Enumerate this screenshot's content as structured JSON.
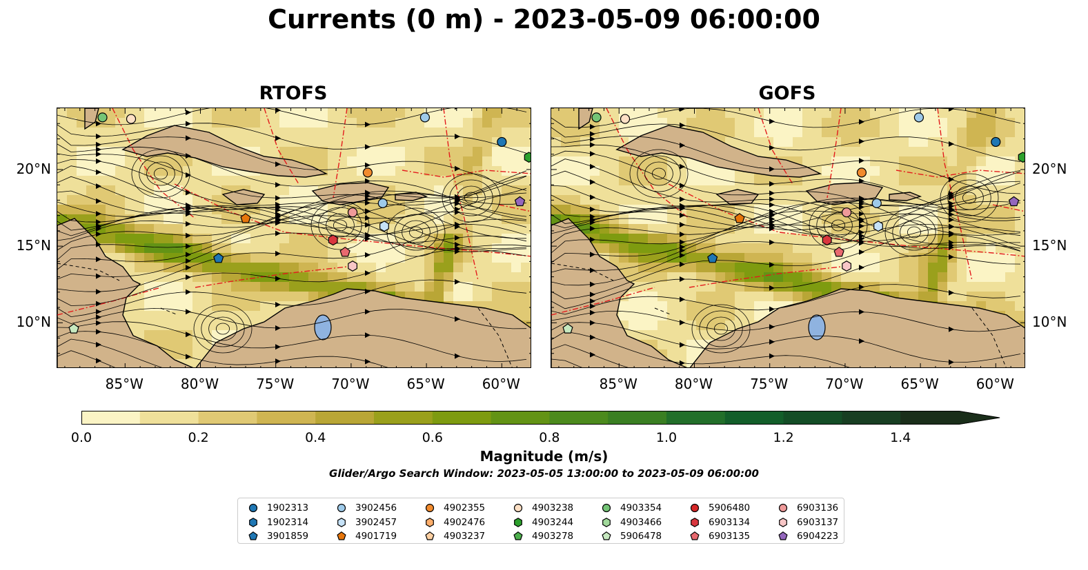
{
  "title": "Currents (0 m) - 2023-05-09 06:00:00",
  "panels": [
    {
      "title": "RTOFS"
    },
    {
      "title": "GOFS"
    }
  ],
  "axes": {
    "lon_labels": [
      "85°W",
      "80°W",
      "75°W",
      "70°W",
      "65°W",
      "60°W"
    ],
    "lat_labels": [
      "20°N",
      "15°N",
      "10°N"
    ]
  },
  "colorbar": {
    "label": "Magnitude (m/s)",
    "ticks": [
      "0.0",
      "0.2",
      "0.4",
      "0.6",
      "0.8",
      "1.0",
      "1.2",
      "1.4"
    ],
    "range": [
      0,
      1.5
    ],
    "extend": "max",
    "colors": [
      "#fbf4c5",
      "#efe09a",
      "#e0c974",
      "#cfb552",
      "#b9a636",
      "#9aa01c",
      "#7e9b10",
      "#639315",
      "#4c8a1d",
      "#3a7f22",
      "#226f2a",
      "#135e2a",
      "#144d26",
      "#183e22",
      "#1a2e1a"
    ]
  },
  "search_window": "Glider/Argo Search Window: 2023-05-05 13:00:00 to 2023-05-09 06:00:00",
  "legend": [
    {
      "id": "1902313",
      "color": "#1f77b4",
      "marker": "circle"
    },
    {
      "id": "1902314",
      "color": "#1f77b4",
      "marker": "hexagon"
    },
    {
      "id": "3901859",
      "color": "#1f77b4",
      "marker": "pentagon"
    },
    {
      "id": "3902456",
      "color": "#9ecae9",
      "marker": "circle"
    },
    {
      "id": "3902457",
      "color": "#c6e2f7",
      "marker": "hexagon"
    },
    {
      "id": "4901719",
      "color": "#e6750b",
      "marker": "pentagon"
    },
    {
      "id": "4902355",
      "color": "#f28b2e",
      "marker": "circle"
    },
    {
      "id": "4902476",
      "color": "#fdae6b",
      "marker": "hexagon"
    },
    {
      "id": "4903237",
      "color": "#fdd0a2",
      "marker": "pentagon"
    },
    {
      "id": "4903238",
      "color": "#fde0c5",
      "marker": "circle"
    },
    {
      "id": "4903244",
      "color": "#2ca02c",
      "marker": "hexagon"
    },
    {
      "id": "4903278",
      "color": "#4caf4c",
      "marker": "pentagon"
    },
    {
      "id": "4903354",
      "color": "#74c476",
      "marker": "circle"
    },
    {
      "id": "4903466",
      "color": "#a1d99b",
      "marker": "hexagon"
    },
    {
      "id": "5906478",
      "color": "#c7e9c0",
      "marker": "pentagon"
    },
    {
      "id": "5906480",
      "color": "#d62728",
      "marker": "circle"
    },
    {
      "id": "6903134",
      "color": "#d9363e",
      "marker": "hexagon"
    },
    {
      "id": "6903135",
      "color": "#e8696f",
      "marker": "pentagon"
    },
    {
      "id": "6903136",
      "color": "#ef9a9a",
      "marker": "circle"
    },
    {
      "id": "6903137",
      "color": "#f7c6c6",
      "marker": "hexagon"
    },
    {
      "id": "6904223",
      "color": "#9467bd",
      "marker": "pentagon"
    }
  ],
  "floats": [
    {
      "id": "4903354",
      "lon": -86.5,
      "lat": 23.4
    },
    {
      "id": "4903238",
      "lon": -84.6,
      "lat": 23.3
    },
    {
      "id": "3902456",
      "lon": -65.1,
      "lat": 23.4
    },
    {
      "id": "1902313",
      "lon": -60.0,
      "lat": 21.8
    },
    {
      "id": "4903244",
      "lon": -58.2,
      "lat": 20.8
    },
    {
      "id": "4902355",
      "lon": -68.9,
      "lat": 19.8
    },
    {
      "id": "6904223",
      "lon": -58.8,
      "lat": 17.9
    },
    {
      "id": "3902456",
      "lon": -67.9,
      "lat": 17.8
    },
    {
      "id": "6903136",
      "lon": -69.9,
      "lat": 17.2
    },
    {
      "id": "3902457",
      "lon": -67.8,
      "lat": 16.3
    },
    {
      "id": "4901719",
      "lon": -77.0,
      "lat": 16.8
    },
    {
      "id": "6903134",
      "lon": -71.2,
      "lat": 15.4
    },
    {
      "id": "6903135",
      "lon": -70.4,
      "lat": 14.6
    },
    {
      "id": "3901859",
      "lon": -78.8,
      "lat": 14.2
    },
    {
      "id": "6903137",
      "lon": -69.9,
      "lat": 13.7
    },
    {
      "id": "5906478",
      "lon": -88.4,
      "lat": 9.6
    }
  ]
}
